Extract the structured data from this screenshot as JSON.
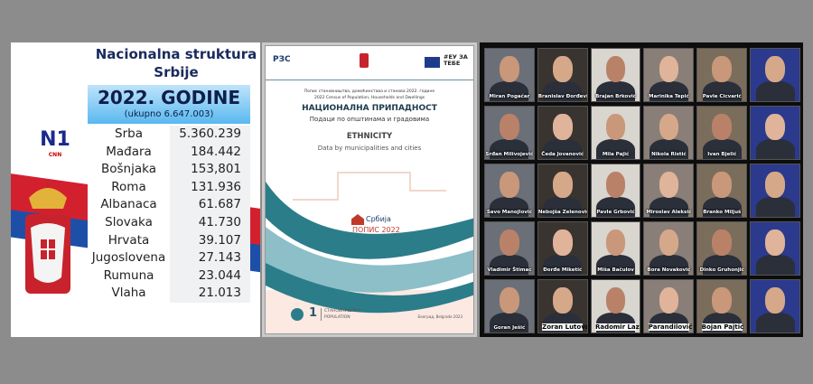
{
  "left_panel": {
    "title": "Nacionalna struktura Srbije",
    "year": "2022. GODINE",
    "total": "(ukupno 6.647.003)",
    "logo": "N1",
    "logo_sub": "CNN",
    "rows": [
      {
        "label": "Srba",
        "value": "5.360.239"
      },
      {
        "label": "Mađara",
        "value": "184.442"
      },
      {
        "label": "Bošnjaka",
        "value": "153,801"
      },
      {
        "label": "Roma",
        "value": "131.936"
      },
      {
        "label": "Albanaca",
        "value": "61.687"
      },
      {
        "label": "Slovaka",
        "value": "41.730"
      },
      {
        "label": "Hrvata",
        "value": "39.107"
      },
      {
        "label": "Jugoslovena",
        "value": "27.143"
      },
      {
        "label": "Rumuna",
        "value": "23.044"
      },
      {
        "label": "Vlaha",
        "value": "21.013"
      }
    ],
    "colors": {
      "red": "#d3202f",
      "blue": "#1e4fa8",
      "header": "#59b8f0"
    }
  },
  "middle_panel": {
    "logo_left": "РЗС",
    "eu_tag": "#ЕУ ЗА ТЕБЕ",
    "subtitle_sr": "Попис становништва, домаћинстава и станова 2022. године",
    "subtitle_en": "2022 Census of Population, Households and Dwellings",
    "title_sr": "НАЦИОНАЛНА ПРИПАДНОСТ",
    "desc_sr": "Подаци по општинама и градовима",
    "title_en": "ETHNICITY",
    "desc_en": "Data by municipalities and cities",
    "brand_top": "Србија",
    "brand_bottom": "ПОПИС 2022",
    "volume": "1",
    "volume_sr": "СТАНОВНИШТВО",
    "volume_en": "POPULATION",
    "place": "Београд, Belgrade 2023",
    "colors": {
      "teal": "#2b7d8a",
      "accent": "#c0392b"
    }
  },
  "right_panel": {
    "people": [
      "Miran Pogačar",
      "Branislav Đorđević",
      "Brajan Brković",
      "Marinika Tepić",
      "Pavle Cicvarić",
      "",
      "Srđan Milivojević",
      "Čeda Jovanović",
      "Mila Pajić",
      "Nikola Ristić",
      "Ivan Bjelić",
      "",
      "Savo Manojlović",
      "Nebojša Zelenović",
      "Pavle Grbović",
      "Miroslav Aleksić",
      "Branko Miljuš",
      "",
      "Vladimir Štimac",
      "Đorđe Miketić",
      "Miša Bačulov",
      "Bora Novaković",
      "Dinko Gruhonjić",
      "",
      "Goran Ješić",
      "Zoran Lutovac",
      "Radomir Lazović",
      "Parandilović",
      "Bojan Pajtić",
      ""
    ]
  }
}
